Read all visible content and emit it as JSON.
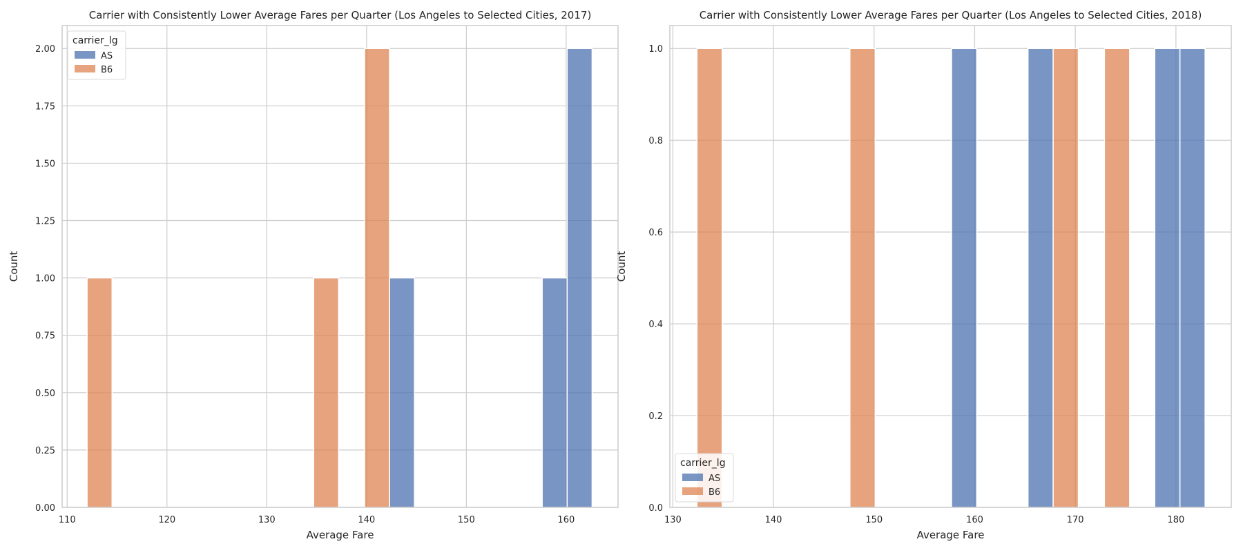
{
  "chart_data": [
    {
      "type": "bar",
      "subtype": "histogram",
      "title": "Carrier with Consistently Lower Average Fares per Quarter (Los Angeles to Selected Cities, 2017)",
      "xlabel": "Average Fare",
      "ylabel": "Count",
      "xlim": [
        109.5,
        165.2
      ],
      "ylim": [
        0,
        2.1
      ],
      "xticks": [
        110,
        120,
        130,
        140,
        150,
        160
      ],
      "yticks": [
        0.0,
        0.25,
        0.5,
        0.75,
        1.0,
        1.25,
        1.5,
        1.75,
        2.0
      ],
      "ytick_labels": [
        "0.00",
        "0.25",
        "0.50",
        "0.75",
        "1.00",
        "1.25",
        "1.50",
        "1.75",
        "2.00"
      ],
      "grid": true,
      "legend": {
        "title": "carrier_lg",
        "placement": "top-left"
      },
      "series": [
        {
          "name": "AS",
          "color": "#4c72b0",
          "bins": [
            {
              "x0": 142.3,
              "x1": 144.8,
              "count": 1
            },
            {
              "x0": 157.6,
              "x1": 160.1,
              "count": 1
            },
            {
              "x0": 160.1,
              "x1": 162.6,
              "count": 2
            }
          ]
        },
        {
          "name": "B6",
          "color": "#dd8452",
          "bins": [
            {
              "x0": 112.0,
              "x1": 114.5,
              "count": 1
            },
            {
              "x0": 134.7,
              "x1": 137.2,
              "count": 1
            },
            {
              "x0": 139.8,
              "x1": 142.3,
              "count": 2
            }
          ]
        }
      ]
    },
    {
      "type": "bar",
      "subtype": "histogram",
      "title": "Carrier with Consistently Lower Average Fares per Quarter (Los Angeles to Selected Cities, 2018)",
      "xlabel": "Average Fare",
      "ylabel": "Count",
      "xlim": [
        129.7,
        185.5
      ],
      "ylim": [
        0,
        1.05
      ],
      "xticks": [
        130,
        140,
        150,
        160,
        170,
        180
      ],
      "yticks": [
        0.0,
        0.2,
        0.4,
        0.6,
        0.8,
        1.0
      ],
      "ytick_labels": [
        "0.0",
        "0.2",
        "0.4",
        "0.6",
        "0.8",
        "1.0"
      ],
      "grid": true,
      "legend": {
        "title": "carrier_lg",
        "placement": "bottom-left"
      },
      "series": [
        {
          "name": "AS",
          "color": "#4c72b0",
          "bins": [
            {
              "x0": 157.7,
              "x1": 160.2,
              "count": 1
            },
            {
              "x0": 165.3,
              "x1": 167.8,
              "count": 1
            },
            {
              "x0": 177.9,
              "x1": 180.4,
              "count": 1
            },
            {
              "x0": 180.4,
              "x1": 182.9,
              "count": 1
            }
          ]
        },
        {
          "name": "B6",
          "color": "#dd8452",
          "bins": [
            {
              "x0": 132.4,
              "x1": 134.9,
              "count": 1
            },
            {
              "x0": 147.6,
              "x1": 150.1,
              "count": 1
            },
            {
              "x0": 167.8,
              "x1": 170.3,
              "count": 1
            },
            {
              "x0": 172.9,
              "x1": 175.4,
              "count": 1
            }
          ]
        }
      ]
    }
  ]
}
